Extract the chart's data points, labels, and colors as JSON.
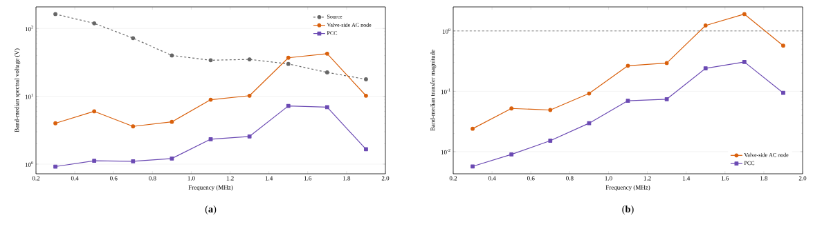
{
  "chart_data": [
    {
      "type": "line",
      "title": "(**a**)",
      "xlabel": "Frequency (MHz)",
      "ylabel": "Band-median spectral voltage (V)",
      "x": [
        0.3,
        0.5,
        0.7,
        0.9,
        1.1,
        1.3,
        1.5,
        1.7,
        1.9
      ],
      "series": [
        {
          "name": "Source",
          "color": "#666666",
          "marker": "circle",
          "line_style": "dashed",
          "values": [
            163,
            119,
            72,
            40,
            34,
            35,
            30,
            22.5,
            17.8
          ]
        },
        {
          "name": "Valve-side AC node",
          "color": "#d9600c",
          "marker": "circle",
          "line_style": "solid",
          "values": [
            4.0,
            6.0,
            3.6,
            4.2,
            8.9,
            10.2,
            37,
            42.5,
            10.2
          ]
        },
        {
          "name": "PCC",
          "color": "#6b4ab3",
          "marker": "square",
          "line_style": "solid",
          "values": [
            0.92,
            1.12,
            1.1,
            1.21,
            2.33,
            2.56,
            7.2,
            6.9,
            1.66
          ]
        }
      ],
      "xlim": [
        0.2,
        2.0
      ],
      "ylim": [
        0.72,
        208
      ],
      "xticks": [
        {
          "value": 0.2,
          "label": "0.2"
        },
        {
          "value": 0.4,
          "label": "0.4"
        },
        {
          "value": 0.6,
          "label": "0.6"
        },
        {
          "value": 0.8,
          "label": "0.8"
        },
        {
          "value": 1.0,
          "label": "1.0"
        },
        {
          "value": 1.2,
          "label": "1.2"
        },
        {
          "value": 1.4,
          "label": "1.4"
        },
        {
          "value": 1.6,
          "label": "1.6"
        },
        {
          "value": 1.8,
          "label": "1.8"
        },
        {
          "value": 2.0,
          "label": "2.0"
        }
      ],
      "yticks": [
        {
          "value": 1,
          "label": "10$^{0}$"
        },
        {
          "value": 10,
          "label": "10$^{1}$"
        },
        {
          "value": 100,
          "label": "10$^{2}$"
        }
      ],
      "log": "y",
      "grid": "y",
      "legend": "top right"
    },
    {
      "type": "line",
      "title": "(**b**)",
      "xlabel": "Frequency (MHz)",
      "ylabel": "Band-median transfer magnitude",
      "x": [
        0.3,
        0.5,
        0.7,
        0.9,
        1.1,
        1.3,
        1.5,
        1.7,
        1.9
      ],
      "series": [
        {
          "name": "Valve-side AC node",
          "color": "#d9600c",
          "marker": "circle",
          "line_style": "solid",
          "values": [
            0.024,
            0.052,
            0.049,
            0.092,
            0.265,
            0.294,
            1.23,
            1.9,
            0.57
          ]
        },
        {
          "name": "PCC",
          "color": "#6b4ab3",
          "marker": "square",
          "line_style": "solid",
          "values": [
            0.0057,
            0.009,
            0.0152,
            0.0296,
            0.0697,
            0.074,
            0.24,
            0.306,
            0.094
          ]
        }
      ],
      "xlim": [
        0.2,
        2.0
      ],
      "ylim": [
        0.0043,
        2.5
      ],
      "xticks": [
        {
          "value": 0.2,
          "label": "0.2"
        },
        {
          "value": 0.4,
          "label": "0.4"
        },
        {
          "value": 0.6,
          "label": "0.6"
        },
        {
          "value": 0.8,
          "label": "0.8"
        },
        {
          "value": 1.0,
          "label": "1.0"
        },
        {
          "value": 1.2,
          "label": "1.2"
        },
        {
          "value": 1.4,
          "label": "1.4"
        },
        {
          "value": 1.6,
          "label": "1.6"
        },
        {
          "value": 1.8,
          "label": "1.8"
        },
        {
          "value": 2.0,
          "label": "2.0"
        }
      ],
      "yticks": [
        {
          "value": 0.01,
          "label": "10$^{-2}$"
        },
        {
          "value": 0.1,
          "label": "10$^{-1}$"
        },
        {
          "value": 1,
          "label": "10$^{0}$"
        }
      ],
      "log": "y",
      "grid": "y",
      "legend": "bottom right",
      "ref_lines": [
        {
          "axis": "y",
          "value": 1,
          "color": "#666666",
          "line_style": "dashed"
        }
      ]
    }
  ]
}
